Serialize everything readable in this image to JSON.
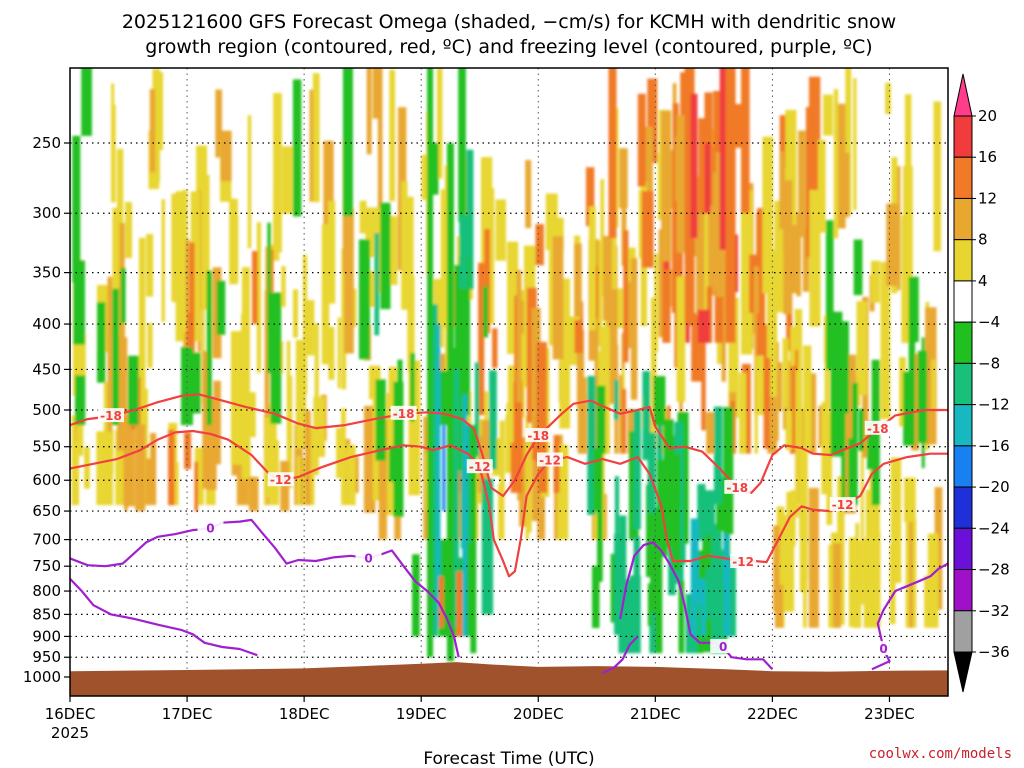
{
  "chart_data": {
    "type": "heatmap",
    "title_lines": [
      "2025121600 GFS Forecast Omega (shaded, −cm/s) for KCMH with dendritic snow",
      "growth region (contoured, red, ºC) and freezing level (contoured, purple, ºC)"
    ],
    "xlabel": "Forecast Time (UTC)",
    "x_ticks": [
      "16DEC",
      "17DEC",
      "18DEC",
      "19DEC",
      "20DEC",
      "21DEC",
      "22DEC",
      "23DEC"
    ],
    "x_year_label": "2025",
    "x_range_days": [
      0,
      7.5
    ],
    "y_ticks": [
      250,
      300,
      350,
      400,
      450,
      500,
      550,
      600,
      650,
      700,
      750,
      800,
      850,
      900,
      950,
      1000
    ],
    "y_axis": "pressure (hPa), log scale, inverted",
    "y_range_hpa": [
      1000,
      200
    ],
    "grid": true,
    "terrain_color": "#a0522d",
    "colorbar": {
      "levels": [
        "20",
        "16",
        "12",
        "8",
        "4",
        "−4",
        "−8",
        "−12",
        "−16",
        "−20",
        "−24",
        "−28",
        "−32",
        "−36"
      ],
      "colors": [
        "#ff3d8a",
        "#f03c3c",
        "#f07a28",
        "#e8a830",
        "#e8d630",
        "#ffffff",
        "#20c020",
        "#18c07a",
        "#18b8c0",
        "#1880f0",
        "#2030d8",
        "#6a10d8",
        "#a010c8",
        "#a0a0a0",
        "#000000"
      ]
    },
    "dendritic_contours": [
      {
        "label": "-18",
        "color": "#f04040",
        "points": [
          [
            0,
            520
          ],
          [
            0.15,
            512
          ],
          [
            0.35,
            508
          ],
          [
            0.55,
            500
          ],
          [
            0.75,
            490
          ],
          [
            0.95,
            482
          ],
          [
            1.1,
            480
          ],
          [
            1.3,
            488
          ],
          [
            1.5,
            496
          ],
          [
            1.75,
            505
          ],
          [
            1.95,
            518
          ],
          [
            2.1,
            524
          ],
          [
            2.35,
            520
          ],
          [
            2.6,
            512
          ],
          [
            2.85,
            505
          ],
          [
            3.05,
            503
          ],
          [
            3.2,
            505
          ],
          [
            3.35,
            512
          ],
          [
            3.45,
            525
          ],
          [
            3.52,
            560
          ],
          [
            3.6,
            612
          ],
          [
            3.7,
            625
          ],
          [
            3.8,
            600
          ],
          [
            3.9,
            562
          ],
          [
            4.0,
            535
          ],
          [
            4.1,
            520
          ],
          [
            4.2,
            505
          ],
          [
            4.3,
            492
          ],
          [
            4.45,
            488
          ],
          [
            4.55,
            495
          ],
          [
            4.7,
            505
          ],
          [
            4.85,
            500
          ],
          [
            4.95,
            496
          ],
          [
            5.0,
            522
          ],
          [
            5.12,
            552
          ],
          [
            5.25,
            550
          ],
          [
            5.4,
            557
          ],
          [
            5.55,
            582
          ],
          [
            5.7,
            612
          ],
          [
            5.82,
            620
          ],
          [
            5.9,
            604
          ],
          [
            6.0,
            562
          ],
          [
            6.1,
            548
          ],
          [
            6.25,
            552
          ],
          [
            6.35,
            560
          ],
          [
            6.5,
            562
          ],
          [
            6.6,
            555
          ],
          [
            6.75,
            545
          ],
          [
            6.9,
            525
          ],
          [
            7.05,
            507
          ],
          [
            7.3,
            500
          ],
          [
            7.5,
            500
          ]
        ]
      },
      {
        "label": "-12",
        "color": "#f04040",
        "points": [
          [
            0,
            582
          ],
          [
            0.2,
            575
          ],
          [
            0.4,
            568
          ],
          [
            0.6,
            555
          ],
          [
            0.75,
            540
          ],
          [
            0.9,
            530
          ],
          [
            1.05,
            528
          ],
          [
            1.2,
            532
          ],
          [
            1.35,
            540
          ],
          [
            1.55,
            562
          ],
          [
            1.7,
            590
          ],
          [
            1.8,
            600
          ],
          [
            1.95,
            595
          ],
          [
            2.15,
            580
          ],
          [
            2.4,
            565
          ],
          [
            2.65,
            555
          ],
          [
            2.85,
            548
          ],
          [
            3.0,
            550
          ],
          [
            3.1,
            555
          ],
          [
            3.25,
            548
          ],
          [
            3.4,
            560
          ],
          [
            3.5,
            580
          ],
          [
            3.58,
            640
          ],
          [
            3.62,
            700
          ],
          [
            3.7,
            740
          ],
          [
            3.75,
            770
          ],
          [
            3.8,
            760
          ],
          [
            3.85,
            700
          ],
          [
            3.9,
            625
          ],
          [
            4.0,
            590
          ],
          [
            4.1,
            570
          ],
          [
            4.25,
            565
          ],
          [
            4.4,
            575
          ],
          [
            4.55,
            568
          ],
          [
            4.7,
            575
          ],
          [
            4.85,
            565
          ],
          [
            4.95,
            590
          ],
          [
            5.05,
            640
          ],
          [
            5.1,
            700
          ],
          [
            5.15,
            740
          ],
          [
            5.3,
            740
          ],
          [
            5.45,
            730
          ],
          [
            5.6,
            735
          ],
          [
            5.75,
            742
          ],
          [
            5.85,
            740
          ],
          [
            5.95,
            742
          ],
          [
            6.05,
            700
          ],
          [
            6.15,
            660
          ],
          [
            6.25,
            642
          ],
          [
            6.35,
            648
          ],
          [
            6.5,
            650
          ],
          [
            6.6,
            640
          ],
          [
            6.75,
            625
          ],
          [
            6.85,
            590
          ],
          [
            6.95,
            575
          ],
          [
            7.15,
            565
          ],
          [
            7.35,
            560
          ],
          [
            7.5,
            560
          ]
        ]
      }
    ],
    "freezing_contours": [
      {
        "label": "0",
        "color": "#a020d0",
        "points": [
          [
            0,
            735
          ],
          [
            0.15,
            748
          ],
          [
            0.3,
            750
          ],
          [
            0.45,
            745
          ],
          [
            0.55,
            725
          ],
          [
            0.65,
            705
          ],
          [
            0.75,
            695
          ],
          [
            0.9,
            690
          ],
          [
            1.05,
            683
          ],
          [
            1.2,
            680
          ],
          [
            1.3,
            670
          ],
          [
            1.45,
            668
          ],
          [
            1.55,
            665
          ],
          [
            1.65,
            690
          ],
          [
            1.75,
            715
          ],
          [
            1.85,
            745
          ],
          [
            1.95,
            738
          ],
          [
            2.1,
            740
          ],
          [
            2.25,
            733
          ],
          [
            2.4,
            730
          ],
          [
            2.55,
            735
          ],
          [
            2.65,
            728
          ],
          [
            2.75,
            720
          ],
          [
            2.85,
            750
          ],
          [
            2.95,
            780
          ],
          [
            3.05,
            800
          ],
          [
            3.15,
            825
          ],
          [
            3.22,
            860
          ],
          [
            3.28,
            900
          ],
          [
            3.32,
            950
          ]
        ]
      },
      {
        "label": "0",
        "color": "#a020d0",
        "points": [
          [
            0,
            775
          ],
          [
            0.1,
            800
          ],
          [
            0.2,
            830
          ],
          [
            0.35,
            850
          ],
          [
            0.55,
            860
          ],
          [
            0.75,
            873
          ],
          [
            0.95,
            885
          ],
          [
            1.05,
            895
          ],
          [
            1.15,
            915
          ],
          [
            1.3,
            925
          ],
          [
            1.45,
            930
          ],
          [
            1.6,
            945
          ]
        ]
      },
      {
        "label": "0",
        "color": "#a020d0",
        "points": [
          [
            4.7,
            860
          ],
          [
            4.75,
            790
          ],
          [
            4.82,
            730
          ],
          [
            4.9,
            710
          ],
          [
            4.98,
            705
          ],
          [
            5.05,
            720
          ],
          [
            5.12,
            745
          ],
          [
            5.2,
            780
          ],
          [
            5.25,
            830
          ],
          [
            5.3,
            895
          ],
          [
            5.38,
            915
          ],
          [
            5.5,
            915
          ],
          [
            5.58,
            925
          ],
          [
            5.65,
            950
          ],
          [
            5.78,
            955
          ],
          [
            5.92,
            955
          ],
          [
            6.0,
            980
          ]
        ]
      },
      {
        "label": "0",
        "color": "#a020d0",
        "points": [
          [
            4.55,
            990
          ],
          [
            4.65,
            975
          ],
          [
            4.72,
            955
          ],
          [
            4.78,
            920
          ],
          [
            4.85,
            900
          ]
        ]
      },
      {
        "label": "0",
        "color": "#a020d0",
        "points": [
          [
            6.85,
            980
          ],
          [
            7.0,
            960
          ],
          [
            6.95,
            930
          ],
          [
            6.9,
            870
          ],
          [
            6.95,
            840
          ],
          [
            7.05,
            800
          ],
          [
            7.15,
            790
          ],
          [
            7.25,
            780
          ],
          [
            7.35,
            770
          ],
          [
            7.42,
            755
          ],
          [
            7.5,
            745
          ]
        ]
      }
    ]
  },
  "credit": "coolwx.com/models"
}
